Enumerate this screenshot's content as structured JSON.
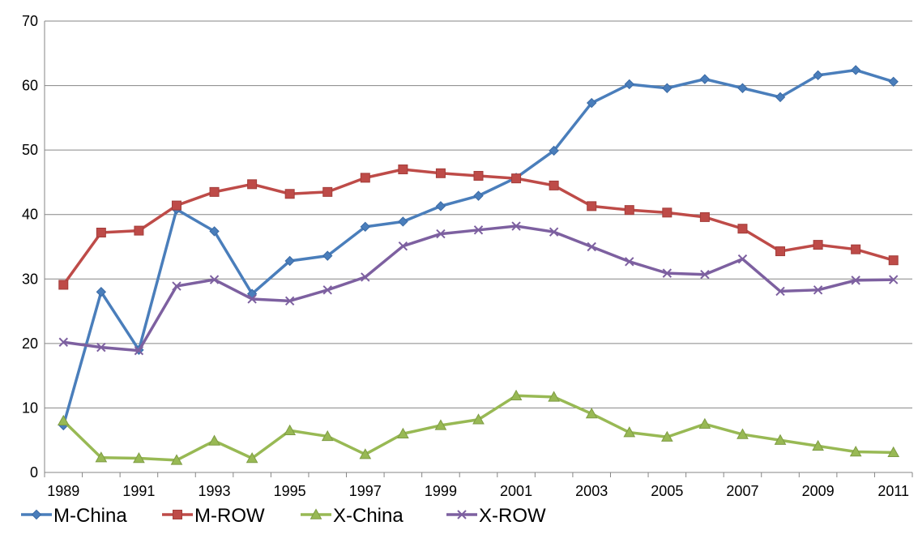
{
  "chart_data": {
    "type": "line",
    "title": "",
    "xlabel": "",
    "ylabel": "",
    "ylim": [
      0,
      70
    ],
    "yticks": [
      "0",
      "10",
      "20",
      "30",
      "40",
      "50",
      "60",
      "70"
    ],
    "x": [
      1989,
      1990,
      1991,
      1992,
      1993,
      1994,
      1995,
      1996,
      1997,
      1998,
      1999,
      2000,
      2001,
      2002,
      2003,
      2004,
      2005,
      2006,
      2007,
      2008,
      2009,
      2010,
      2011
    ],
    "xtick_labels": [
      "1989",
      "1991",
      "1993",
      "1995",
      "1997",
      "1999",
      "2001",
      "2003",
      "2005",
      "2007",
      "2009",
      "2011"
    ],
    "grid": "horizontal",
    "legend_position": "bottom-left",
    "series": [
      {
        "name": "M-China",
        "color": "#4a7ebb",
        "marker": "diamond",
        "values": [
          7.3,
          28.0,
          19.0,
          40.8,
          37.4,
          27.7,
          32.8,
          33.6,
          38.1,
          38.9,
          41.3,
          42.9,
          45.7,
          49.9,
          57.3,
          60.2,
          59.6,
          61.0,
          59.6,
          58.2,
          61.6,
          62.4,
          60.6
        ]
      },
      {
        "name": "M-ROW",
        "color": "#be4b48",
        "marker": "square",
        "values": [
          29.1,
          37.2,
          37.5,
          41.4,
          43.5,
          44.7,
          43.2,
          43.5,
          45.7,
          47.0,
          46.4,
          46.0,
          45.6,
          44.5,
          41.3,
          40.7,
          40.3,
          39.6,
          37.8,
          34.3,
          35.3,
          34.6,
          32.9
        ]
      },
      {
        "name": "X-China",
        "color": "#98b954",
        "marker": "triangle",
        "values": [
          8.0,
          2.3,
          2.2,
          1.9,
          4.9,
          2.2,
          6.5,
          5.6,
          2.8,
          6.0,
          7.3,
          8.2,
          11.9,
          11.7,
          9.1,
          6.2,
          5.5,
          7.5,
          5.9,
          5.0,
          4.1,
          3.2,
          3.1
        ]
      },
      {
        "name": "X-ROW",
        "color": "#7d60a0",
        "marker": "x",
        "values": [
          20.2,
          19.4,
          18.9,
          28.9,
          29.9,
          26.9,
          26.6,
          28.3,
          30.3,
          35.1,
          37.0,
          37.6,
          38.2,
          37.3,
          35.0,
          32.7,
          30.9,
          30.7,
          33.1,
          28.1,
          28.3,
          29.8,
          29.9
        ]
      }
    ]
  }
}
